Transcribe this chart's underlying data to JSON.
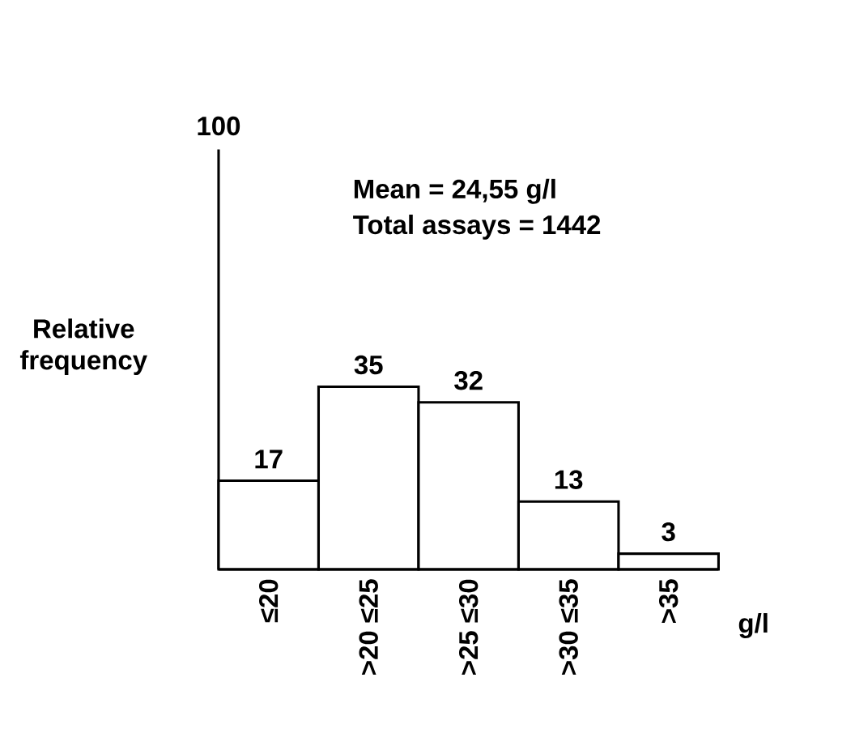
{
  "chart_data": {
    "type": "bar",
    "categories": [
      "≤20",
      ">20 ≤25",
      ">25 ≤30",
      ">30 ≤35",
      ">35"
    ],
    "values": [
      17,
      35,
      32,
      13,
      3
    ],
    "color": "#ffffff",
    "xlabel": "g/l",
    "ylabel": "Relative frequency",
    "data_labels": true,
    "annotations": [
      "100",
      "Mean = 24,55 g/l",
      "Total assays = 1442"
    ]
  }
}
